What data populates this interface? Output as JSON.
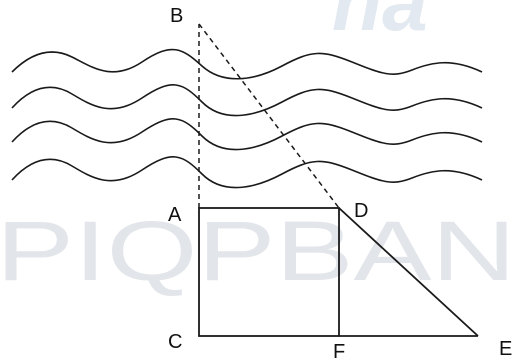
{
  "watermark": {
    "top": "na",
    "main": "PIQPBAN"
  },
  "points": {
    "B": "B",
    "A": "A",
    "D": "D",
    "C": "C",
    "F": "F",
    "E": "E"
  }
}
